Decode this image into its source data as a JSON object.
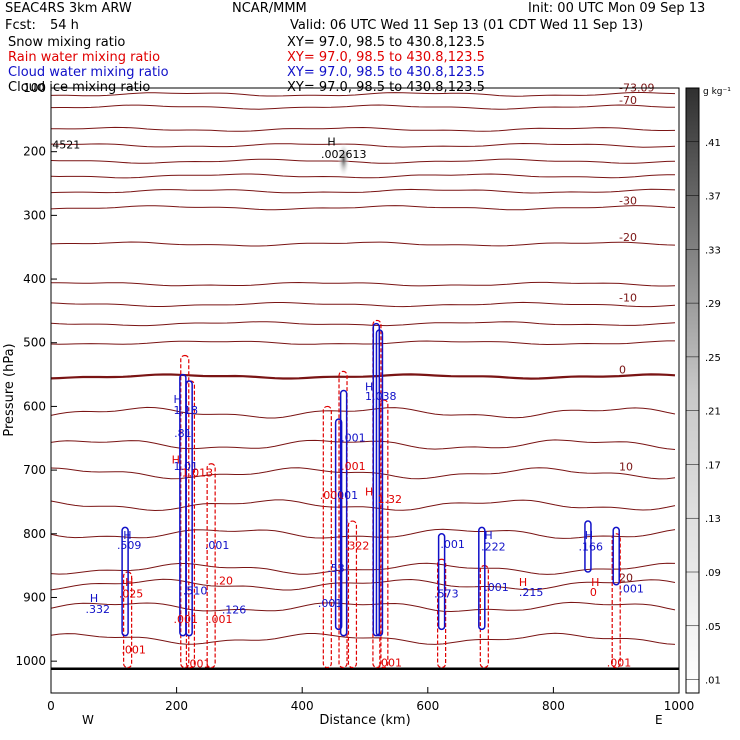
{
  "header": {
    "model": "SEAC4RS  3km ARW",
    "center": "NCAR/MMM",
    "init": "Init: 00 UTC Mon 09 Sep 13",
    "fcst_label": "Fcst:",
    "fcst_value": "54 h",
    "valid": "Valid: 06 UTC Wed 11 Sep 13 (01 CDT Wed 11 Sep 13)"
  },
  "fields": [
    {
      "name": "Snow mixing ratio",
      "xy": "XY=  97.0, 98.5 to 430.8,123.5",
      "color": "#000000"
    },
    {
      "name": "Rain water mixing ratio",
      "xy": "XY=  97.0, 98.5 to 430.8,123.5",
      "color": "#e00000"
    },
    {
      "name": "Cloud water mixing ratio",
      "xy": "XY=  97.0, 98.5 to 430.8,123.5",
      "color": "#1010c8"
    },
    {
      "name": "Cloud ice mixing ratio",
      "xy": "XY=  97.0, 98.5 to 430.8,123.5",
      "color": "#000000"
    }
  ],
  "chart_data": {
    "type": "heatmap",
    "xlabel": "Distance (km)",
    "ylabel": "Pressure (hPa)",
    "xlim": [
      0,
      1000
    ],
    "ylim": [
      1050,
      100
    ],
    "x_ticks": [
      "0",
      "200",
      "400",
      "600",
      "800",
      "1000"
    ],
    "x_tick_values": [
      0,
      200,
      400,
      600,
      800,
      1000
    ],
    "y_ticks": [
      "100",
      "200",
      "300",
      "400",
      "500",
      "600",
      "700",
      "800",
      "900",
      "1000"
    ],
    "y_tick_values": [
      100,
      200,
      300,
      400,
      500,
      600,
      700,
      800,
      900,
      1000
    ],
    "x_end_labels": {
      "left": "W",
      "right": "E"
    },
    "colorbar": {
      "unit": "g kg⁻¹",
      "labels": [
        ".41",
        ".37",
        ".33",
        ".29",
        ".25",
        ".21",
        ".17",
        ".13",
        ".09",
        ".05",
        ".01"
      ],
      "label_values": [
        0.41,
        0.37,
        0.33,
        0.29,
        0.25,
        0.21,
        0.17,
        0.13,
        0.09,
        0.05,
        0.01
      ],
      "range": [
        0,
        0.45
      ]
    },
    "temperature_contours": [
      {
        "p": 110,
        "label": "-73.09"
      },
      {
        "p": 130,
        "label": "-70"
      },
      {
        "p": 165,
        "label": ""
      },
      {
        "p": 190,
        "label": ""
      },
      {
        "p": 215,
        "label": ""
      },
      {
        "p": 238,
        "label": ""
      },
      {
        "p": 262,
        "label": ""
      },
      {
        "p": 288,
        "label": "-30"
      },
      {
        "p": 345,
        "label": "-20"
      },
      {
        "p": 408,
        "label": ""
      },
      {
        "p": 440,
        "label": "-10"
      },
      {
        "p": 470,
        "label": ""
      },
      {
        "p": 500,
        "label": ""
      },
      {
        "p": 553,
        "label": "0"
      },
      {
        "p": 610,
        "label": ""
      },
      {
        "p": 660,
        "label": ""
      },
      {
        "p": 705,
        "label": "10"
      },
      {
        "p": 755,
        "label": ""
      },
      {
        "p": 800,
        "label": ""
      },
      {
        "p": 855,
        "label": ""
      },
      {
        "p": 880,
        "label": "20"
      },
      {
        "p": 915,
        "label": ""
      },
      {
        "p": 965,
        "label": ""
      }
    ],
    "ground_pressure": 1012,
    "rain_columns": [
      {
        "x": 122,
        "top": 860,
        "bottom": 1010
      },
      {
        "x": 213,
        "top": 520,
        "bottom": 1010
      },
      {
        "x": 222,
        "top": 560,
        "bottom": 1010
      },
      {
        "x": 255,
        "top": 690,
        "bottom": 1010
      },
      {
        "x": 440,
        "top": 600,
        "bottom": 1010
      },
      {
        "x": 465,
        "top": 545,
        "bottom": 1010
      },
      {
        "x": 480,
        "top": 780,
        "bottom": 1010
      },
      {
        "x": 519,
        "top": 465,
        "bottom": 1010
      },
      {
        "x": 530,
        "top": 590,
        "bottom": 1010
      },
      {
        "x": 622,
        "top": 840,
        "bottom": 1010
      },
      {
        "x": 690,
        "top": 850,
        "bottom": 1010
      },
      {
        "x": 900,
        "top": 800,
        "bottom": 1010
      }
    ],
    "cloud_columns": [
      {
        "x": 118,
        "top": 790,
        "bottom": 960
      },
      {
        "x": 210,
        "top": 550,
        "bottom": 960
      },
      {
        "x": 220,
        "top": 560,
        "bottom": 960
      },
      {
        "x": 458,
        "top": 620,
        "bottom": 950
      },
      {
        "x": 466,
        "top": 575,
        "bottom": 960
      },
      {
        "x": 518,
        "top": 470,
        "bottom": 960
      },
      {
        "x": 523,
        "top": 480,
        "bottom": 960
      },
      {
        "x": 622,
        "top": 800,
        "bottom": 950
      },
      {
        "x": 686,
        "top": 790,
        "bottom": 950
      },
      {
        "x": 855,
        "top": 780,
        "bottom": 860
      },
      {
        "x": 900,
        "top": 790,
        "bottom": 880
      }
    ],
    "snow_blob": {
      "x": 466,
      "top": 185,
      "bottom": 240
    },
    "annotations": [
      {
        "x": 2,
        "p": 195,
        "text": "4521",
        "color": "#000000"
      },
      {
        "x": 440,
        "p": 190,
        "text": "H",
        "color": "#000000"
      },
      {
        "x": 430,
        "p": 210,
        "text": ".002613",
        "color": "#000000"
      },
      {
        "x": 500,
        "p": 575,
        "text": "H",
        "color": "#1010c8"
      },
      {
        "x": 500,
        "p": 590,
        "text": "1.038",
        "color": "#1010c8"
      },
      {
        "x": 195,
        "p": 595,
        "text": "H",
        "color": "#1010c8"
      },
      {
        "x": 195,
        "p": 612,
        "text": "1.18",
        "color": "#1010c8"
      },
      {
        "x": 196,
        "p": 648,
        "text": ".81",
        "color": "#1010c8"
      },
      {
        "x": 192,
        "p": 690,
        "text": "H",
        "color": "#e00000"
      },
      {
        "x": 195,
        "p": 700,
        "text": "1.01",
        "color": "#1010c8"
      },
      {
        "x": 208,
        "p": 710,
        "text": "1.013",
        "color": "#e00000"
      },
      {
        "x": 462,
        "p": 655,
        "text": ".001",
        "color": "#1010c8"
      },
      {
        "x": 462,
        "p": 700,
        "text": ".001",
        "color": "#e00000"
      },
      {
        "x": 428,
        "p": 745,
        "text": ".001",
        "color": "#e00000"
      },
      {
        "x": 450,
        "p": 745,
        "text": ".001",
        "color": "#1010c8"
      },
      {
        "x": 500,
        "p": 740,
        "text": "H",
        "color": "#e00000"
      },
      {
        "x": 520,
        "p": 752,
        "text": "1.32",
        "color": "#e00000"
      },
      {
        "x": 115,
        "p": 808,
        "text": "H",
        "color": "#1010c8"
      },
      {
        "x": 105,
        "p": 824,
        "text": ".509",
        "color": "#1010c8"
      },
      {
        "x": 245,
        "p": 824,
        "text": ".001",
        "color": "#1010c8"
      },
      {
        "x": 620,
        "p": 822,
        "text": ".001",
        "color": "#1010c8"
      },
      {
        "x": 690,
        "p": 808,
        "text": "H",
        "color": "#1010c8"
      },
      {
        "x": 685,
        "p": 826,
        "text": ".222",
        "color": "#1010c8"
      },
      {
        "x": 850,
        "p": 808,
        "text": "H",
        "color": "#1010c8"
      },
      {
        "x": 840,
        "p": 826,
        "text": ".166",
        "color": "#1010c8"
      },
      {
        "x": 468,
        "p": 825,
        "text": ".322",
        "color": "#e00000"
      },
      {
        "x": 262,
        "p": 880,
        "text": ".20",
        "color": "#e00000"
      },
      {
        "x": 118,
        "p": 882,
        "text": "H",
        "color": "#e00000"
      },
      {
        "x": 108,
        "p": 900,
        "text": ".025",
        "color": "#e00000"
      },
      {
        "x": 62,
        "p": 907,
        "text": "H",
        "color": "#1010c8"
      },
      {
        "x": 55,
        "p": 924,
        "text": ".332",
        "color": "#1010c8"
      },
      {
        "x": 210,
        "p": 895,
        "text": ".510",
        "color": "#1010c8"
      },
      {
        "x": 440,
        "p": 860,
        "text": ".53",
        "color": "#1010c8"
      },
      {
        "x": 425,
        "p": 915,
        "text": ".001",
        "color": "#1010c8"
      },
      {
        "x": 272,
        "p": 925,
        "text": ".126",
        "color": "#1010c8"
      },
      {
        "x": 610,
        "p": 900,
        "text": ".573",
        "color": "#1010c8"
      },
      {
        "x": 690,
        "p": 890,
        "text": ".001",
        "color": "#1010c8"
      },
      {
        "x": 745,
        "p": 882,
        "text": "H",
        "color": "#e00000"
      },
      {
        "x": 745,
        "p": 898,
        "text": ".215",
        "color": "#1010c8"
      },
      {
        "x": 860,
        "p": 882,
        "text": "H",
        "color": "#e00000"
      },
      {
        "x": 858,
        "p": 898,
        "text": "0",
        "color": "#e00000"
      },
      {
        "x": 905,
        "p": 892,
        "text": ".001",
        "color": "#1010c8"
      },
      {
        "x": 195,
        "p": 940,
        "text": ".001",
        "color": "#e00000"
      },
      {
        "x": 250,
        "p": 940,
        "text": ".001",
        "color": "#e00000"
      },
      {
        "x": 112,
        "p": 988,
        "text": ".001",
        "color": "#e00000"
      },
      {
        "x": 215,
        "p": 1010,
        "text": ".001",
        "color": "#e00000"
      },
      {
        "x": 520,
        "p": 1008,
        "text": ".001",
        "color": "#e00000"
      },
      {
        "x": 885,
        "p": 1008,
        "text": ".001",
        "color": "#e00000"
      }
    ]
  }
}
